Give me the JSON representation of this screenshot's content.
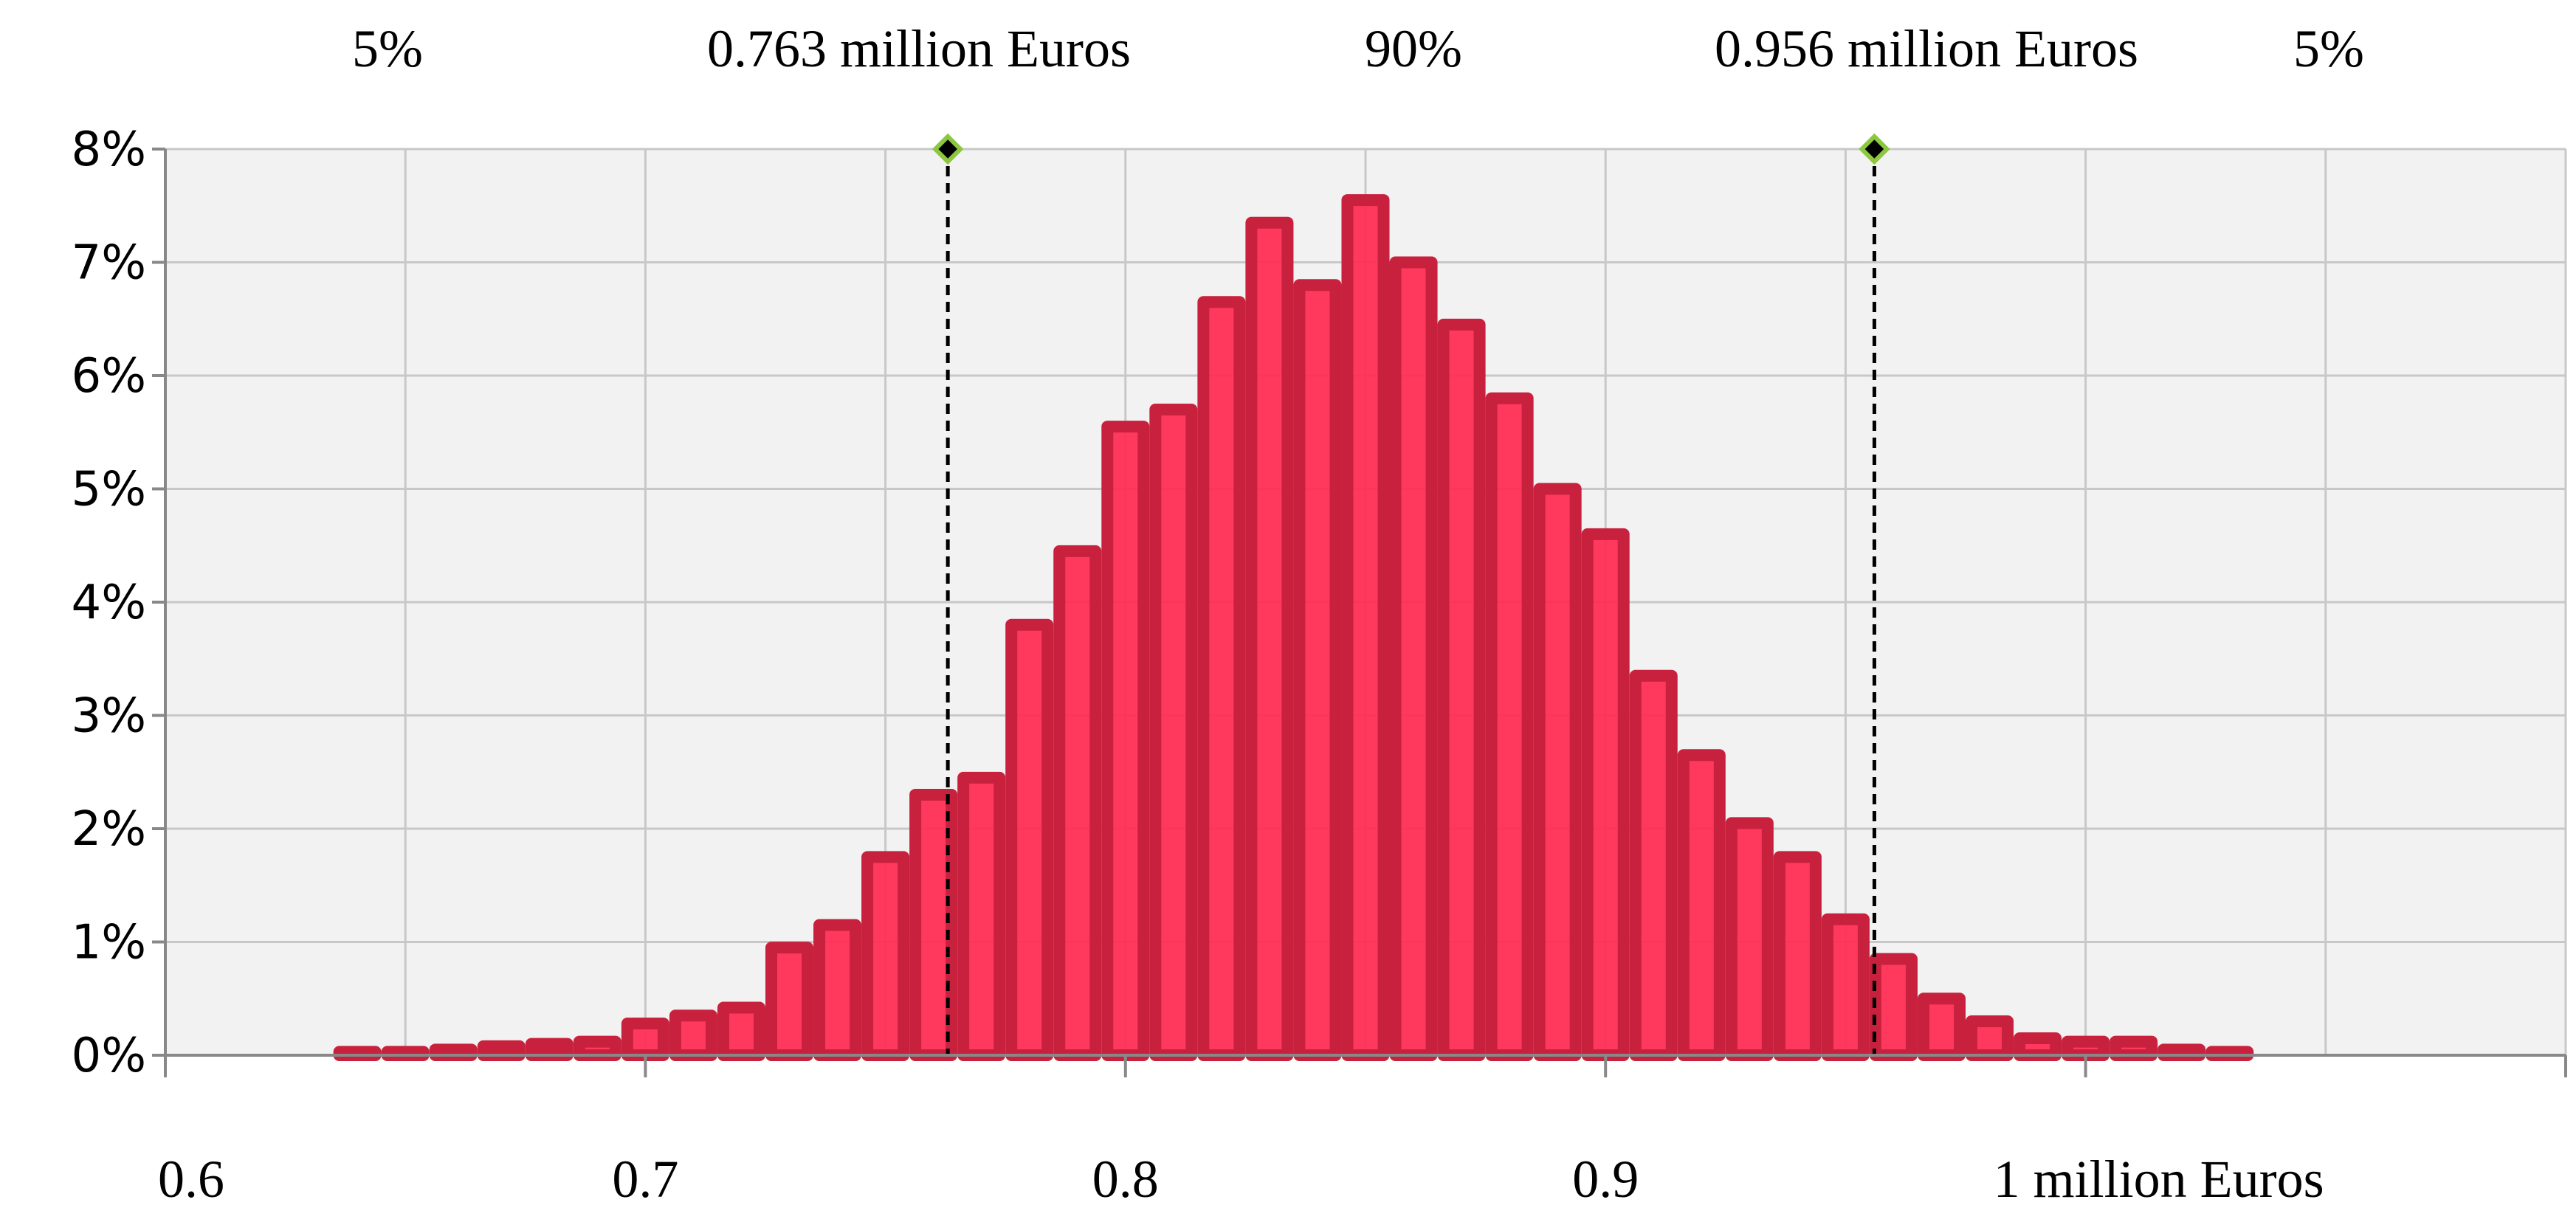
{
  "chart_data": {
    "type": "bar",
    "subtype": "histogram",
    "title": "",
    "xlabel": "",
    "ylabel": "",
    "x_ticks": [
      "0.6",
      "0.7",
      "0.8",
      "0.9",
      "1 million Euros"
    ],
    "y_ticks": [
      "0%",
      "1%",
      "2%",
      "3%",
      "4%",
      "5%",
      "6%",
      "7%",
      "8%"
    ],
    "xlim": [
      0.6,
      1.1
    ],
    "ylim": [
      0,
      8
    ],
    "grid": true,
    "legend": "none",
    "bin_width": 0.01,
    "bins": [
      {
        "x0": 0.635,
        "value": 0.0
      },
      {
        "x0": 0.645,
        "value": 0.0
      },
      {
        "x0": 0.655,
        "value": 0.05
      },
      {
        "x0": 0.665,
        "value": 0.08
      },
      {
        "x0": 0.675,
        "value": 0.1
      },
      {
        "x0": 0.685,
        "value": 0.12
      },
      {
        "x0": 0.695,
        "value": 0.28
      },
      {
        "x0": 0.705,
        "value": 0.35
      },
      {
        "x0": 0.715,
        "value": 0.42
      },
      {
        "x0": 0.725,
        "value": 0.95
      },
      {
        "x0": 0.735,
        "value": 1.15
      },
      {
        "x0": 0.745,
        "value": 1.75
      },
      {
        "x0": 0.755,
        "value": 2.3
      },
      {
        "x0": 0.765,
        "value": 2.45
      },
      {
        "x0": 0.775,
        "value": 3.8
      },
      {
        "x0": 0.785,
        "value": 4.45
      },
      {
        "x0": 0.795,
        "value": 5.55
      },
      {
        "x0": 0.805,
        "value": 5.7
      },
      {
        "x0": 0.815,
        "value": 6.65
      },
      {
        "x0": 0.825,
        "value": 7.35
      },
      {
        "x0": 0.835,
        "value": 6.8
      },
      {
        "x0": 0.845,
        "value": 7.55
      },
      {
        "x0": 0.855,
        "value": 7.0
      },
      {
        "x0": 0.865,
        "value": 6.45
      },
      {
        "x0": 0.875,
        "value": 5.8
      },
      {
        "x0": 0.885,
        "value": 5.0
      },
      {
        "x0": 0.895,
        "value": 4.6
      },
      {
        "x0": 0.905,
        "value": 3.35
      },
      {
        "x0": 0.915,
        "value": 2.65
      },
      {
        "x0": 0.925,
        "value": 2.05
      },
      {
        "x0": 0.935,
        "value": 1.75
      },
      {
        "x0": 0.945,
        "value": 1.2
      },
      {
        "x0": 0.955,
        "value": 0.85
      },
      {
        "x0": 0.965,
        "value": 0.5
      },
      {
        "x0": 0.975,
        "value": 0.3
      },
      {
        "x0": 0.985,
        "value": 0.15
      },
      {
        "x0": 0.995,
        "value": 0.12
      },
      {
        "x0": 1.005,
        "value": 0.12
      },
      {
        "x0": 1.015,
        "value": 0.05
      },
      {
        "x0": 1.025,
        "value": 0.0
      }
    ],
    "markers": [
      {
        "x": 0.763,
        "y": 8
      },
      {
        "x": 0.956,
        "y": 8
      }
    ],
    "top_annotations": [
      "5%",
      "0.763 million Euros",
      "90%",
      "0.956 million Euros",
      "5%"
    ],
    "colors": {
      "bar_fill": "#ff2d55",
      "bar_stroke": "#c8213d",
      "plot_bg": "#f2f2f2",
      "grid": "#c8c8c8",
      "marker_fill": "#000000",
      "marker_stroke": "#8dc63f"
    }
  }
}
